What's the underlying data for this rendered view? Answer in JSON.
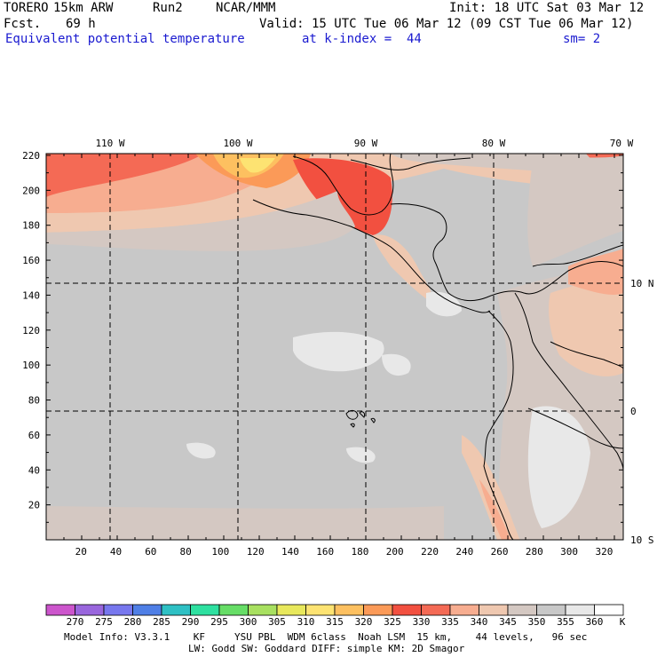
{
  "header": {
    "model": "TORERO",
    "resolution": "15km ARW",
    "run": "Run2",
    "source": "NCAR/MMM",
    "init": "Init: 18 UTC Sat 03 Mar 12",
    "fcst_label": "Fcst.",
    "fcst_value": "69 h",
    "valid": "Valid: 15 UTC Tue 06 Mar 12 (09 CST Tue 06 Mar 12)",
    "field": "Equivalent potential temperature",
    "level": "at k-index =  44",
    "smoothing": "sm= 2"
  },
  "map": {
    "longitude_labels": [
      "110 W",
      "100 W",
      "90 W",
      "80 W",
      "70 W"
    ],
    "latitude_labels": [
      "10 N",
      "0",
      "10 S"
    ],
    "grid_y_labels": [
      "220",
      "200",
      "180",
      "160",
      "140",
      "120",
      "100",
      "80",
      "60",
      "40",
      "20"
    ],
    "grid_x_labels": [
      "20",
      "40",
      "60",
      "80",
      "100",
      "120",
      "140",
      "160",
      "180",
      "200",
      "220",
      "240",
      "260",
      "280",
      "300",
      "320"
    ]
  },
  "colorbar": {
    "labels": [
      "270",
      "275",
      "280",
      "285",
      "290",
      "295",
      "300",
      "305",
      "310",
      "315",
      "320",
      "325",
      "330",
      "335",
      "340",
      "345",
      "350",
      "355",
      "360"
    ],
    "unit": "K",
    "colors": [
      "#cc55cc",
      "#9966dd",
      "#7777ee",
      "#4f7fe6",
      "#2ec0c4",
      "#2ee0a0",
      "#66dd66",
      "#a8e060",
      "#e8e85c",
      "#fde372",
      "#fdc060",
      "#fb9a58",
      "#f25040",
      "#f46a55",
      "#f7ad90",
      "#efc8b0",
      "#d4c8c2",
      "#c8c8c8",
      "#e8e8e8",
      "#ffffff"
    ]
  },
  "footer": {
    "line1": "Model Info: V3.3.1    KF     YSU PBL  WDM 6class  Noah LSM  15 km,    44 levels,   96 sec",
    "line2": "LW: Godd SW: Goddard DIFF: simple KM: 2D Smagor"
  }
}
